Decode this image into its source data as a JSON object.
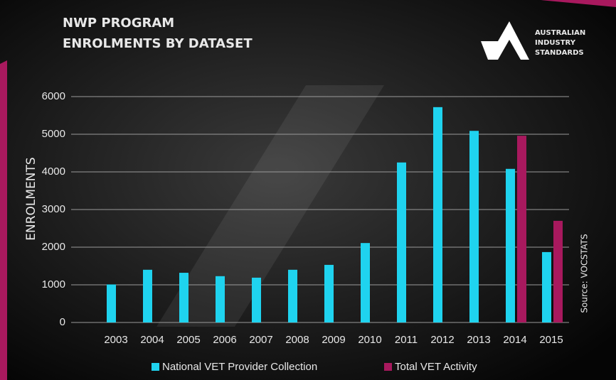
{
  "chart_data": {
    "type": "bar",
    "title": "NWP PROGRAM",
    "subtitle": "ENROLMENTS BY DATASET",
    "logo": [
      "AUSTRALIAN",
      "INDUSTRY",
      "STANDARDS"
    ],
    "y_label": "ENROLMENTS",
    "source": "Source: VOCSTATS",
    "categories": [
      "2003",
      "2004",
      "2005",
      "2006",
      "2007",
      "2008",
      "2009",
      "2010",
      "2011",
      "2012",
      "2013",
      "2014",
      "2015"
    ],
    "series": [
      {
        "name": "National VET Provider Collection",
        "color": "#1fd3ef",
        "values": [
          1010,
          1400,
          1320,
          1230,
          1190,
          1400,
          1530,
          2110,
          4250,
          5720,
          5090,
          4080,
          1870
        ]
      },
      {
        "name": "Total VET Activity",
        "color": "#a8195e",
        "values": [
          null,
          null,
          null,
          null,
          null,
          null,
          null,
          null,
          null,
          null,
          null,
          4960,
          2700
        ]
      }
    ],
    "ylim": [
      0,
      6000
    ],
    "yticks": [
      0,
      1000,
      2000,
      3000,
      4000,
      5000,
      6000
    ],
    "grid": true
  }
}
